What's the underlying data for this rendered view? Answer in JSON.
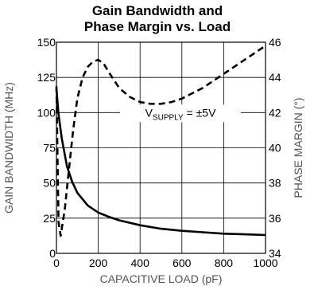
{
  "chart_data": {
    "type": "line",
    "title": [
      "Gain Bandwidth and",
      "Phase Margin vs. Load"
    ],
    "xlabel": "CAPACITIVE LOAD (pF)",
    "ylabel": "GAIN BANDWIDTH (MHz)",
    "y2label": "PHASE MARGIN (°)",
    "xlim": [
      0,
      1000
    ],
    "ylim": [
      0,
      150
    ],
    "y2lim": [
      34,
      46
    ],
    "xticks": [
      "0",
      "200",
      "400",
      "600",
      "800",
      "1000"
    ],
    "yticks": [
      "0",
      "25",
      "50",
      "75",
      "100",
      "125",
      "150"
    ],
    "y2ticks": [
      "34",
      "36",
      "38",
      "40",
      "42",
      "44",
      "46"
    ],
    "grid": true,
    "annotation": {
      "main": "V",
      "sub": "SUPPLY",
      "rest": " = ±5V"
    },
    "series": [
      {
        "axis": "left",
        "style": "solid",
        "x": [
          0,
          10,
          25,
          50,
          75,
          100,
          150,
          200,
          250,
          300,
          400,
          500,
          600,
          700,
          800,
          900,
          1000
        ],
        "values": [
          117,
          99,
          82,
          62,
          51,
          43,
          34,
          29,
          26,
          23.5,
          20,
          17.5,
          16,
          15,
          14,
          13.5,
          13
        ]
      },
      {
        "axis": "right",
        "style": "dashed",
        "x": [
          0,
          10,
          20,
          40,
          60,
          80,
          100,
          125,
          150,
          175,
          200,
          225,
          250,
          300,
          350,
          400,
          450,
          500,
          550,
          600,
          700,
          800,
          900,
          1000
        ],
        "values": [
          43.5,
          35.8,
          35.0,
          36.5,
          38.8,
          41.0,
          42.8,
          44.0,
          44.6,
          44.9,
          45.0,
          44.8,
          44.3,
          43.4,
          42.9,
          42.6,
          42.5,
          42.5,
          42.6,
          42.8,
          43.4,
          44.2,
          45.0,
          45.8
        ]
      }
    ]
  }
}
